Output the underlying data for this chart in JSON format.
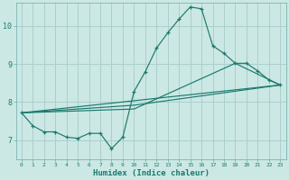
{
  "xlabel": "Humidex (Indice chaleur)",
  "bg_color": "#cce8e4",
  "grid_color": "#aacfcc",
  "line_color": "#1a7a6e",
  "xlim": [
    -0.5,
    23.5
  ],
  "ylim": [
    6.5,
    10.6
  ],
  "xticks": [
    0,
    1,
    2,
    3,
    4,
    5,
    6,
    7,
    8,
    9,
    10,
    11,
    12,
    13,
    14,
    15,
    16,
    17,
    18,
    19,
    20,
    21,
    22,
    23
  ],
  "yticks": [
    7,
    8,
    9,
    10
  ],
  "main_line_x": [
    0,
    1,
    2,
    3,
    4,
    5,
    6,
    7,
    8,
    9,
    10,
    11,
    12,
    13,
    14,
    15,
    16,
    17,
    18,
    19,
    20,
    21,
    22,
    23
  ],
  "main_line_y": [
    7.72,
    7.38,
    7.22,
    7.22,
    7.08,
    7.05,
    7.18,
    7.18,
    6.78,
    7.08,
    8.28,
    8.8,
    9.42,
    9.82,
    10.18,
    10.5,
    10.45,
    9.48,
    9.28,
    9.02,
    9.02,
    8.82,
    8.58,
    8.45
  ],
  "trend1_x": [
    0,
    23
  ],
  "trend1_y": [
    7.72,
    8.45
  ],
  "trend2_x": [
    0,
    10,
    23
  ],
  "trend2_y": [
    7.72,
    7.92,
    8.45
  ],
  "trend3_x": [
    0,
    10,
    19,
    23
  ],
  "trend3_y": [
    7.72,
    7.82,
    9.02,
    8.45
  ]
}
